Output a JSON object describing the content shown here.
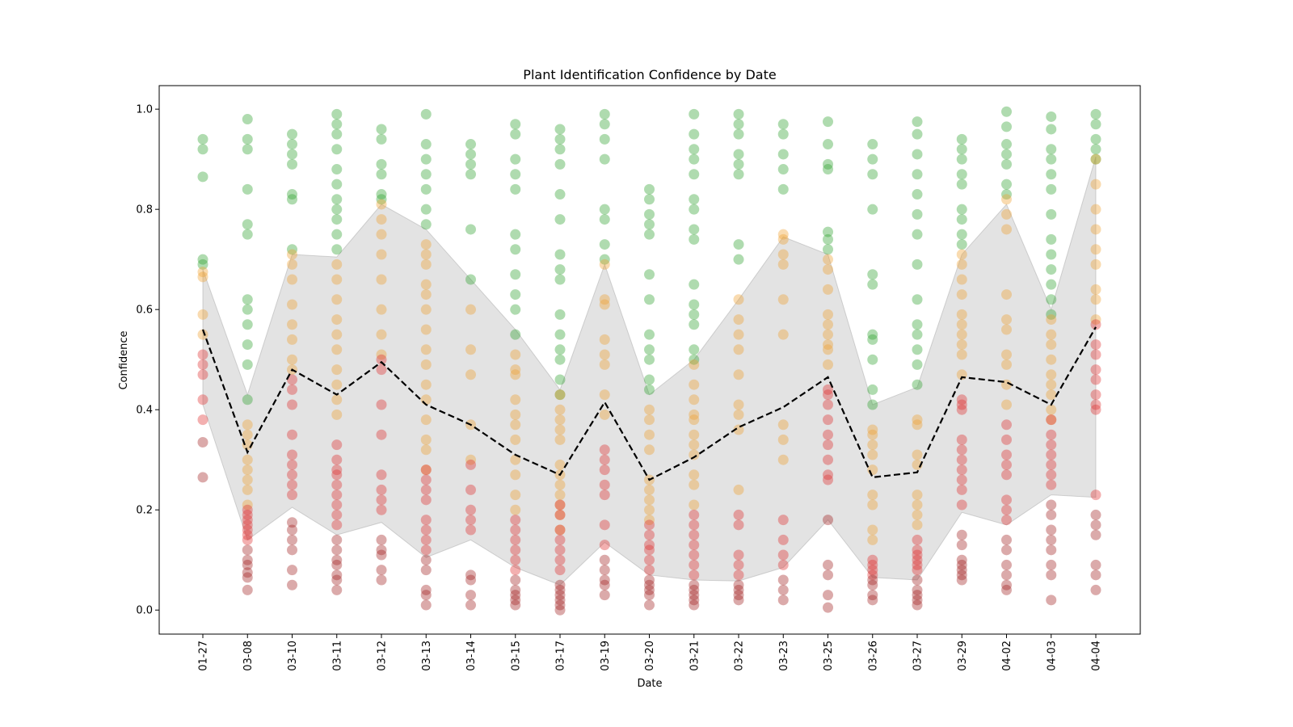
{
  "chart_data": {
    "type": "scatter",
    "title": "Plant Identification Confidence by Date",
    "xlabel": "Date",
    "ylabel": "Confidence",
    "categories": [
      "01-27",
      "03-08",
      "03-10",
      "03-11",
      "03-12",
      "03-13",
      "03-14",
      "03-15",
      "03-17",
      "03-19",
      "03-20",
      "03-21",
      "03-22",
      "03-23",
      "03-25",
      "03-26",
      "03-27",
      "03-29",
      "04-02",
      "04-03",
      "04-04"
    ],
    "ylim": [
      -0.048,
      1.047
    ],
    "yticks": [
      {
        "value": 0,
        "label": "0.0"
      },
      {
        "value": 0.2,
        "label": "0.2"
      },
      {
        "value": 0.4,
        "label": "0.4"
      },
      {
        "value": 0.6,
        "label": "0.6"
      },
      {
        "value": 0.8,
        "label": "0.8"
      },
      {
        "value": 1,
        "label": "1.0"
      }
    ],
    "band": {
      "color": "#c8c8c8",
      "lower": [
        0.41,
        0.14,
        0.205,
        0.15,
        0.175,
        0.105,
        0.14,
        0.085,
        0.05,
        0.135,
        0.07,
        0.06,
        0.058,
        0.085,
        0.18,
        0.065,
        0.06,
        0.195,
        0.17,
        0.23,
        0.225
      ],
      "upper": [
        0.68,
        0.43,
        0.71,
        0.705,
        0.81,
        0.76,
        0.66,
        0.56,
        0.44,
        0.69,
        0.43,
        0.5,
        0.62,
        0.745,
        0.71,
        0.41,
        0.445,
        0.71,
        0.81,
        0.6,
        0.905
      ]
    },
    "mean": {
      "color": "#000000",
      "values": [
        0.56,
        0.315,
        0.48,
        0.43,
        0.495,
        0.41,
        0.37,
        0.31,
        0.27,
        0.415,
        0.26,
        0.305,
        0.365,
        0.405,
        0.465,
        0.265,
        0.275,
        0.465,
        0.455,
        0.41,
        0.565
      ]
    },
    "series": [
      {
        "color": "#2ca02c",
        "values": [
          [
            0.94,
            0.92,
            0.865,
            0.7,
            0.69
          ],
          [
            0.98,
            0.94,
            0.92,
            0.84,
            0.77,
            0.75,
            0.62,
            0.6,
            0.57,
            0.53,
            0.49,
            0.42
          ],
          [
            0.95,
            0.93,
            0.91,
            0.89,
            0.83,
            0.82,
            0.72
          ],
          [
            0.99,
            0.97,
            0.95,
            0.92,
            0.88,
            0.85,
            0.82,
            0.8,
            0.78,
            0.75,
            0.72
          ],
          [
            0.96,
            0.94,
            0.89,
            0.87,
            0.83,
            0.82
          ],
          [
            0.99,
            0.93,
            0.9,
            0.87,
            0.84,
            0.8,
            0.77
          ],
          [
            0.93,
            0.91,
            0.89,
            0.87,
            0.76,
            0.66
          ],
          [
            0.97,
            0.95,
            0.9,
            0.87,
            0.84,
            0.75,
            0.72,
            0.67,
            0.63,
            0.6,
            0.55
          ],
          [
            0.96,
            0.94,
            0.92,
            0.89,
            0.83,
            0.78,
            0.71,
            0.68,
            0.66,
            0.59,
            0.55,
            0.52,
            0.5,
            0.46,
            0.43
          ],
          [
            0.99,
            0.97,
            0.94,
            0.9,
            0.8,
            0.78,
            0.73,
            0.7
          ],
          [
            0.84,
            0.82,
            0.79,
            0.77,
            0.75,
            0.67,
            0.62,
            0.55,
            0.52,
            0.5,
            0.46,
            0.44
          ],
          [
            0.99,
            0.95,
            0.92,
            0.9,
            0.87,
            0.82,
            0.8,
            0.76,
            0.74,
            0.65,
            0.61,
            0.59,
            0.57,
            0.52,
            0.5
          ],
          [
            0.99,
            0.97,
            0.95,
            0.91,
            0.89,
            0.87,
            0.73,
            0.7
          ],
          [
            0.97,
            0.95,
            0.91,
            0.88,
            0.84
          ],
          [
            0.975,
            0.93,
            0.89,
            0.88,
            0.755,
            0.74,
            0.72
          ],
          [
            0.93,
            0.9,
            0.87,
            0.8,
            0.67,
            0.65,
            0.55,
            0.54,
            0.5,
            0.44,
            0.41
          ],
          [
            0.975,
            0.95,
            0.91,
            0.87,
            0.83,
            0.79,
            0.75,
            0.69,
            0.62,
            0.57,
            0.55,
            0.52,
            0.49,
            0.45
          ],
          [
            0.94,
            0.92,
            0.9,
            0.87,
            0.85,
            0.8,
            0.78,
            0.75,
            0.73
          ],
          [
            0.995,
            0.965,
            0.93,
            0.91,
            0.89,
            0.85,
            0.83
          ],
          [
            0.985,
            0.96,
            0.92,
            0.9,
            0.87,
            0.84,
            0.79,
            0.74,
            0.71,
            0.68,
            0.65,
            0.62,
            0.59
          ],
          [
            0.99,
            0.97,
            0.94,
            0.92,
            0.9
          ]
        ]
      },
      {
        "color": "#f0a030",
        "values": [
          [
            0.675,
            0.665,
            0.59,
            0.55
          ],
          [
            0.37,
            0.35,
            0.33,
            0.3,
            0.28,
            0.26,
            0.24,
            0.21
          ],
          [
            0.71,
            0.69,
            0.66,
            0.61,
            0.57,
            0.54,
            0.5,
            0.48
          ],
          [
            0.69,
            0.66,
            0.62,
            0.58,
            0.55,
            0.52,
            0.48,
            0.45,
            0.42,
            0.39
          ],
          [
            0.81,
            0.78,
            0.75,
            0.71,
            0.66,
            0.6,
            0.55,
            0.51
          ],
          [
            0.73,
            0.71,
            0.69,
            0.65,
            0.63,
            0.6,
            0.56,
            0.52,
            0.49,
            0.45,
            0.42,
            0.38,
            0.34,
            0.32,
            0.28
          ],
          [
            0.6,
            0.52,
            0.47,
            0.37,
            0.3
          ],
          [
            0.51,
            0.48,
            0.47,
            0.42,
            0.39,
            0.37,
            0.34,
            0.3,
            0.27,
            0.23,
            0.2
          ],
          [
            0.43,
            0.4,
            0.38,
            0.36,
            0.34,
            0.29,
            0.27,
            0.25,
            0.23,
            0.21,
            0.19,
            0.16
          ],
          [
            0.69,
            0.62,
            0.61,
            0.54,
            0.51,
            0.49,
            0.43,
            0.39
          ],
          [
            0.4,
            0.38,
            0.35,
            0.32,
            0.26,
            0.24,
            0.22,
            0.2,
            0.18
          ],
          [
            0.49,
            0.45,
            0.42,
            0.39,
            0.38,
            0.35,
            0.33,
            0.31,
            0.27,
            0.25,
            0.21
          ],
          [
            0.62,
            0.58,
            0.55,
            0.52,
            0.47,
            0.41,
            0.39,
            0.36,
            0.24
          ],
          [
            0.75,
            0.74,
            0.71,
            0.69,
            0.62,
            0.55,
            0.37,
            0.34,
            0.3
          ],
          [
            0.7,
            0.68,
            0.64,
            0.59,
            0.57,
            0.55,
            0.53,
            0.52,
            0.49
          ],
          [
            0.36,
            0.35,
            0.33,
            0.31,
            0.28,
            0.23,
            0.21,
            0.16,
            0.14
          ],
          [
            0.38,
            0.37,
            0.31,
            0.29,
            0.23,
            0.21,
            0.19,
            0.17
          ],
          [
            0.71,
            0.69,
            0.66,
            0.63,
            0.59,
            0.57,
            0.55,
            0.53,
            0.51,
            0.47
          ],
          [
            0.82,
            0.79,
            0.76,
            0.63,
            0.58,
            0.56,
            0.51,
            0.49,
            0.45,
            0.41
          ],
          [
            0.58,
            0.55,
            0.53,
            0.5,
            0.47,
            0.45,
            0.43,
            0.4,
            0.38
          ],
          [
            0.9,
            0.85,
            0.8,
            0.76,
            0.72,
            0.69,
            0.64,
            0.62,
            0.58
          ]
        ]
      },
      {
        "color": "#e03030",
        "values": [
          [
            0.51,
            0.49,
            0.47,
            0.42,
            0.38
          ],
          [
            0.2,
            0.19,
            0.18,
            0.17,
            0.16,
            0.15,
            0.14
          ],
          [
            0.46,
            0.44,
            0.41,
            0.35,
            0.31,
            0.29,
            0.27,
            0.25,
            0.23
          ],
          [
            0.33,
            0.3,
            0.28,
            0.27,
            0.25,
            0.23,
            0.21,
            0.19,
            0.17
          ],
          [
            0.5,
            0.48,
            0.41,
            0.35,
            0.27,
            0.24,
            0.22,
            0.2
          ],
          [
            0.28,
            0.26,
            0.24,
            0.22,
            0.18,
            0.16,
            0.14,
            0.12
          ],
          [
            0.29,
            0.24,
            0.2,
            0.18,
            0.16
          ],
          [
            0.18,
            0.16,
            0.14,
            0.12,
            0.1,
            0.08
          ],
          [
            0.21,
            0.19,
            0.16,
            0.14,
            0.12,
            0.1,
            0.08
          ],
          [
            0.32,
            0.3,
            0.28,
            0.25,
            0.23,
            0.17,
            0.13
          ],
          [
            0.17,
            0.15,
            0.13,
            0.12,
            0.1,
            0.08
          ],
          [
            0.19,
            0.17,
            0.15,
            0.13,
            0.11,
            0.09,
            0.07
          ],
          [
            0.19,
            0.17,
            0.11,
            0.09,
            0.07
          ],
          [
            0.18,
            0.14,
            0.11,
            0.09
          ],
          [
            0.44,
            0.43,
            0.41,
            0.38,
            0.35,
            0.33,
            0.3,
            0.27,
            0.26
          ],
          [
            0.1,
            0.09,
            0.08,
            0.07
          ],
          [
            0.14,
            0.12,
            0.11,
            0.1,
            0.09,
            0.08
          ],
          [
            0.42,
            0.41,
            0.4,
            0.34,
            0.32,
            0.3,
            0.28,
            0.26,
            0.24,
            0.21
          ],
          [
            0.37,
            0.34,
            0.31,
            0.29,
            0.27,
            0.22,
            0.2,
            0.18
          ],
          [
            0.38,
            0.35,
            0.33,
            0.31,
            0.29,
            0.27,
            0.25
          ],
          [
            0.57,
            0.53,
            0.51,
            0.48,
            0.46,
            0.43,
            0.41,
            0.4,
            0.23
          ]
        ]
      },
      {
        "color": "#a02020",
        "values": [
          [
            0.335,
            0.265
          ],
          [
            0.12,
            0.1,
            0.09,
            0.075,
            0.065,
            0.04
          ],
          [
            0.175,
            0.16,
            0.14,
            0.12,
            0.08,
            0.05
          ],
          [
            0.14,
            0.12,
            0.1,
            0.09,
            0.07,
            0.06,
            0.04
          ],
          [
            0.14,
            0.12,
            0.11,
            0.08,
            0.06
          ],
          [
            0.1,
            0.08,
            0.04,
            0.03,
            0.01
          ],
          [
            0.07,
            0.06,
            0.03,
            0.01
          ],
          [
            0.06,
            0.04,
            0.03,
            0.02,
            0.01
          ],
          [
            0.05,
            0.04,
            0.03,
            0.02,
            0.01,
            0.0
          ],
          [
            0.1,
            0.08,
            0.06,
            0.05,
            0.03
          ],
          [
            0.06,
            0.05,
            0.04,
            0.03,
            0.01
          ],
          [
            0.05,
            0.04,
            0.03,
            0.02,
            0.01
          ],
          [
            0.05,
            0.04,
            0.03,
            0.02
          ],
          [
            0.06,
            0.04,
            0.02
          ],
          [
            0.18,
            0.09,
            0.07,
            0.03,
            0.005
          ],
          [
            0.06,
            0.05,
            0.03,
            0.02
          ],
          [
            0.06,
            0.04,
            0.03,
            0.02,
            0.01
          ],
          [
            0.15,
            0.13,
            0.1,
            0.09,
            0.08,
            0.07,
            0.06
          ],
          [
            0.14,
            0.12,
            0.09,
            0.07,
            0.05,
            0.04
          ],
          [
            0.21,
            0.19,
            0.16,
            0.14,
            0.12,
            0.09,
            0.07,
            0.02
          ],
          [
            0.19,
            0.17,
            0.15,
            0.09,
            0.07,
            0.04
          ]
        ]
      }
    ]
  }
}
